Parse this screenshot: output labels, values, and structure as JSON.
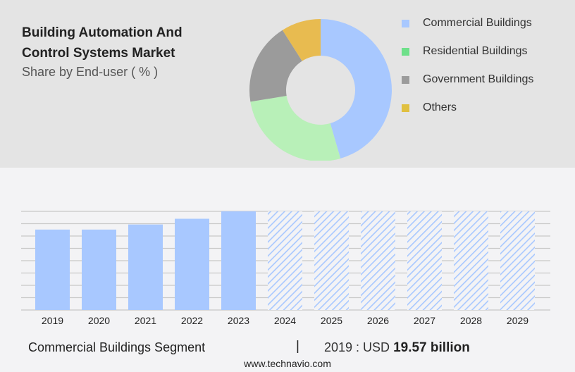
{
  "header": {
    "title": "Building Automation And Control Systems Market",
    "subtitle": "Share by End-user ( % )"
  },
  "chart_data": [
    {
      "type": "pie",
      "donut": true,
      "title": "Building Automation And Control Systems Market",
      "subtitle": "Share by End-user ( % )",
      "legend_placement": "right",
      "slices": [
        {
          "name": "Commercial Buildings",
          "value": 45.5,
          "color": "#a8c8ff"
        },
        {
          "name": "Residential Buildings",
          "value": 26.9,
          "color": "#b8f0b8"
        },
        {
          "name": "Government Buildings",
          "value": 18.6,
          "color": "#9b9b9b"
        },
        {
          "name": "Others",
          "value": 9.0,
          "color": "#e8bb50"
        }
      ],
      "legend_colors": [
        "#a8c8ff",
        "#6ee08a",
        "#9b9b9b",
        "#e0c040"
      ]
    },
    {
      "type": "bar",
      "categories": [
        "2019",
        "2020",
        "2021",
        "2022",
        "2023",
        "2024",
        "2025",
        "2026",
        "2027",
        "2028",
        "2029"
      ],
      "values": [
        19.57,
        19.57,
        20.8,
        22.2,
        24.0,
        24.0,
        24.0,
        24.0,
        24.0,
        24.0,
        24.0
      ],
      "forecast_from": "2024",
      "bar_color": "#a8c8ff",
      "forecast_style": "hatched",
      "ylim": [
        0,
        24.0
      ],
      "grid": true,
      "xlabel": "",
      "ylabel": ""
    }
  ],
  "footer": {
    "segment": "Commercial Buildings Segment",
    "separator": "|",
    "year_label": "2019 : USD",
    "value": "19.57 billion",
    "site": "www.technavio.com"
  }
}
